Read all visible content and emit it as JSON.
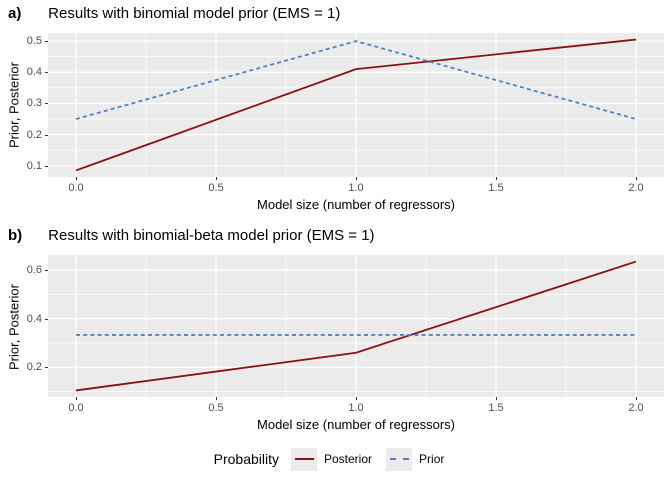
{
  "colors": {
    "posterior": "#8B1010",
    "prior": "#4F82C4",
    "panel_bg": "#EBEBEB",
    "gridline": "#FFFFFF",
    "tick_label": "#4D4D4D",
    "text": "#000000"
  },
  "legend": {
    "title": "Probability",
    "entries": [
      {
        "label": "Posterior",
        "style": "solid",
        "color": "#8B1010"
      },
      {
        "label": "Prior",
        "style": "dashed",
        "color": "#4F82C4"
      }
    ],
    "position": "bottom"
  },
  "chart_data": [
    {
      "type": "line",
      "tag": "a)",
      "title": "Results with binomial model prior (EMS = 1)",
      "xlabel": "Model size (number of regressors)",
      "ylabel": "Prior, Posterior",
      "x": [
        0,
        1,
        2
      ],
      "series": [
        {
          "name": "Posterior",
          "values": [
            0.085,
            0.41,
            0.505
          ],
          "style": "solid",
          "color": "#8B1010"
        },
        {
          "name": "Prior",
          "values": [
            0.25,
            0.5,
            0.25
          ],
          "style": "dashed",
          "color": "#4F82C4"
        }
      ],
      "xlim": [
        -0.1,
        2.1
      ],
      "ylim": [
        0.064,
        0.526
      ],
      "xticks": [
        0.0,
        0.5,
        1.0,
        1.5,
        2.0
      ],
      "xtick_labels": [
        "0.0",
        "0.5",
        "1.0",
        "1.5",
        "2.0"
      ],
      "yticks": [
        0.1,
        0.2,
        0.3,
        0.4,
        0.5
      ],
      "ytick_labels": [
        "0.1",
        "0.2",
        "0.3",
        "0.4",
        "0.5"
      ],
      "x_minor": [
        0.25,
        0.75,
        1.25,
        1.75
      ],
      "y_minor": [
        0.15,
        0.25,
        0.35,
        0.45
      ],
      "grid": true
    },
    {
      "type": "line",
      "tag": "b)",
      "title": "Results with binomial-beta model prior (EMS = 1)",
      "xlabel": "Model size (number of regressors)",
      "ylabel": "Prior, Posterior",
      "x": [
        0,
        1,
        2
      ],
      "series": [
        {
          "name": "Posterior",
          "values": [
            0.105,
            0.26,
            0.635
          ],
          "style": "solid",
          "color": "#8B1010"
        },
        {
          "name": "Prior",
          "values": [
            0.3333,
            0.3333,
            0.3333
          ],
          "style": "dashed",
          "color": "#4F82C4"
        }
      ],
      "xlim": [
        -0.1,
        2.1
      ],
      "ylim": [
        0.078,
        0.662
      ],
      "xticks": [
        0.0,
        0.5,
        1.0,
        1.5,
        2.0
      ],
      "xtick_labels": [
        "0.0",
        "0.5",
        "1.0",
        "1.5",
        "2.0"
      ],
      "yticks": [
        0.2,
        0.4,
        0.6
      ],
      "ytick_labels": [
        "0.2",
        "0.4",
        "0.6"
      ],
      "x_minor": [
        0.25,
        0.75,
        1.25,
        1.75
      ],
      "y_minor": [
        0.1,
        0.3,
        0.5
      ],
      "grid": true
    }
  ]
}
